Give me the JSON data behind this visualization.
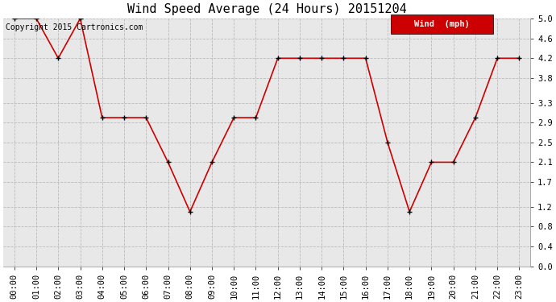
{
  "title": "Wind Speed Average (24 Hours) 20151204",
  "copyright_text": "Copyright 2015 Cartronics.com",
  "legend_label": "Wind  (mph)",
  "x_labels": [
    "00:00",
    "01:00",
    "02:00",
    "03:00",
    "04:00",
    "05:00",
    "06:00",
    "07:00",
    "08:00",
    "09:00",
    "10:00",
    "11:00",
    "12:00",
    "13:00",
    "14:00",
    "15:00",
    "16:00",
    "17:00",
    "18:00",
    "19:00",
    "20:00",
    "21:00",
    "22:00",
    "23:00"
  ],
  "y_values": [
    5.0,
    5.0,
    4.2,
    5.0,
    3.0,
    3.0,
    3.0,
    2.1,
    1.1,
    2.1,
    3.0,
    3.0,
    4.2,
    4.2,
    4.2,
    4.2,
    4.2,
    2.5,
    1.1,
    2.1,
    2.1,
    3.0,
    4.2,
    4.2
  ],
  "ylim": [
    0.0,
    5.0
  ],
  "yticks": [
    0.0,
    0.4,
    0.8,
    1.2,
    1.7,
    2.1,
    2.5,
    2.9,
    3.3,
    3.8,
    4.2,
    4.6,
    5.0
  ],
  "line_color": "#cc0000",
  "marker_color": "#000000",
  "bg_color": "#ffffff",
  "plot_bg_color": "#e8e8e8",
  "grid_color": "#bbbbbb",
  "title_fontsize": 11,
  "tick_fontsize": 7.5,
  "copyright_fontsize": 7,
  "legend_fontsize": 7.5
}
